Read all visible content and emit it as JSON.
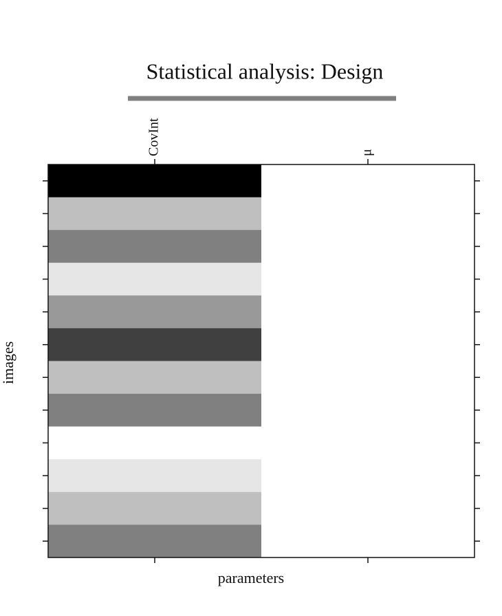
{
  "chart_data": {
    "type": "heatmap",
    "title": "Statistical analysis: Design",
    "xlabel": "parameters",
    "ylabel": "images",
    "columns": [
      "CovInt",
      "μ"
    ],
    "rows": [
      null,
      null,
      null,
      null,
      null,
      null,
      null,
      null,
      null,
      null,
      null,
      null
    ],
    "values": [
      [
        0,
        1
      ],
      [
        0.75,
        1
      ],
      [
        0.5,
        1
      ],
      [
        0.9,
        1
      ],
      [
        0.6,
        1
      ],
      [
        0.25,
        1
      ],
      [
        0.75,
        1
      ],
      [
        0.5,
        1
      ],
      [
        1,
        1
      ],
      [
        0.9,
        1
      ],
      [
        0.75,
        1
      ],
      [
        0.5,
        1
      ]
    ],
    "zlim": [
      0,
      1
    ],
    "colormap": "gray"
  }
}
